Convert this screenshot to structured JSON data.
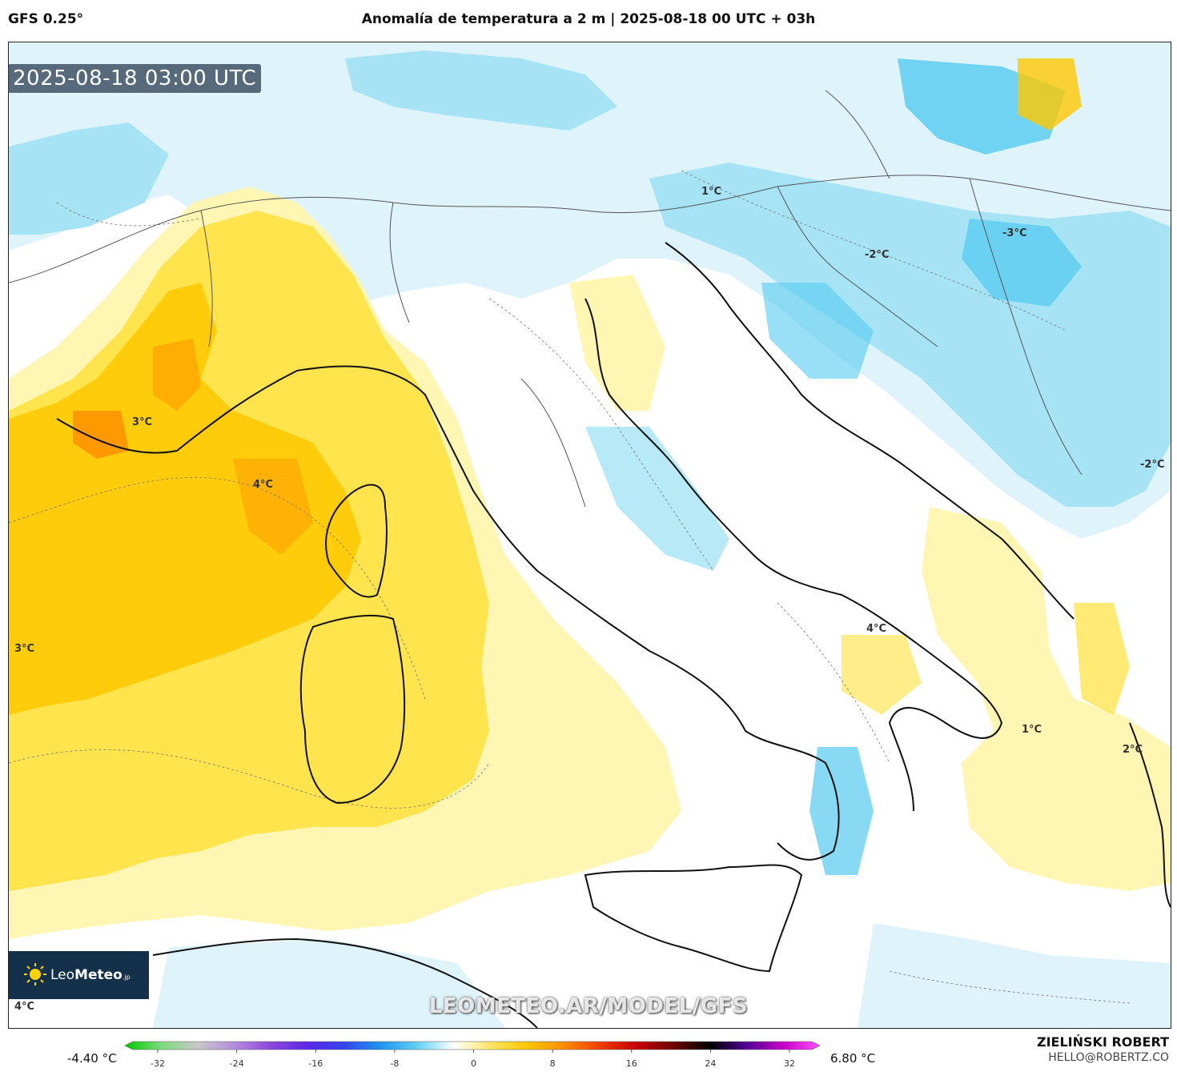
{
  "header": {
    "model": "GFS 0.25°",
    "title": "Anomalía de temperatura a 2 m | 2025-08-18 00 UTC + 03h"
  },
  "map": {
    "valid_time": "2025-08-18 03:00 UTC",
    "labels": [
      {
        "text": "3°C",
        "region": "provence"
      },
      {
        "text": "4°C",
        "region": "ligurian-sea"
      },
      {
        "text": "3°C",
        "region": "western-mediterranean"
      },
      {
        "text": "4°C",
        "region": "algeria-coast"
      },
      {
        "text": "1°C",
        "region": "slovenia"
      },
      {
        "text": "-2°C",
        "region": "hungary-croatia"
      },
      {
        "text": "-3°C",
        "region": "northeast"
      },
      {
        "text": "-2°C",
        "region": "east-balkans"
      },
      {
        "text": "4°C",
        "region": "apulia"
      },
      {
        "text": "1°C",
        "region": "ionian-sea"
      },
      {
        "text": "2°C",
        "region": "greece"
      }
    ],
    "watermark": "LEOMETEO.AR/MODEL/GFS",
    "brand": {
      "name_light": "Leo",
      "name_bold": "Meteo",
      "suffix": ".jp"
    }
  },
  "colorbar": {
    "min_label": "-4.40 °C",
    "max_label": "6.80 °C",
    "ticks": [
      "-32",
      "-24",
      "-16",
      "-8",
      "0",
      "8",
      "16",
      "24",
      "32"
    ],
    "stops": [
      "#00c800",
      "#7ddc7d",
      "#c8c8c8",
      "#b48cdc",
      "#8c46dc",
      "#5a28e6",
      "#3246f0",
      "#1e96f0",
      "#64d2f5",
      "#ffffff",
      "#ffe664",
      "#ffc800",
      "#ff8c00",
      "#f03c00",
      "#c80000",
      "#6e0000",
      "#000000",
      "#500096",
      "#c800c8",
      "#ff50ff"
    ]
  },
  "author": {
    "name": "ZIELIŃSKI ROBERT",
    "email": "HELLO@ROBERTZ.CO"
  },
  "colors": {
    "warm_light": "#fff6b4",
    "warm_mid": "#ffe13c",
    "warm_strong": "#ffc800",
    "warm_hot": "#ffa000",
    "cold_light": "#dff3fb",
    "cold_mid": "#a6e3f5",
    "cold_strong": "#55cbf0",
    "border": "#111111"
  }
}
